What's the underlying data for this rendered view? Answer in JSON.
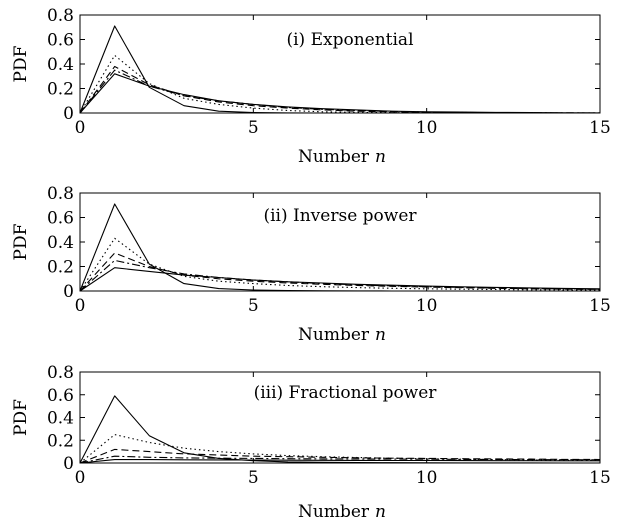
{
  "chart_data": [
    {
      "type": "line",
      "title": "(i) Exponential",
      "xlabel": "Number",
      "xlabel_var": "n",
      "ylabel": "PDF",
      "xlim": [
        0,
        15
      ],
      "ylim": [
        0,
        0.8
      ],
      "xticks": [
        0,
        5,
        10,
        15
      ],
      "yticks": [
        0,
        0.2,
        0.4,
        0.6,
        0.8
      ],
      "x": [
        0,
        1,
        2,
        3,
        4,
        5,
        6,
        7,
        8,
        9,
        10,
        11,
        12,
        13,
        14,
        15
      ],
      "series": [
        {
          "style": "solid",
          "values": [
            0,
            0.71,
            0.21,
            0.06,
            0.015,
            0.004,
            0.001,
            0,
            0,
            0,
            0,
            0,
            0,
            0,
            0,
            0
          ]
        },
        {
          "style": "dotted",
          "values": [
            0,
            0.47,
            0.24,
            0.12,
            0.07,
            0.04,
            0.02,
            0.01,
            0.005,
            0.003,
            0.002,
            0.001,
            0,
            0,
            0,
            0
          ]
        },
        {
          "style": "dashed",
          "values": [
            0,
            0.38,
            0.23,
            0.14,
            0.09,
            0.06,
            0.04,
            0.025,
            0.015,
            0.01,
            0.006,
            0.004,
            0.002,
            0.001,
            0.001,
            0
          ]
        },
        {
          "style": "dashdot",
          "values": [
            0,
            0.35,
            0.22,
            0.14,
            0.1,
            0.07,
            0.045,
            0.03,
            0.02,
            0.012,
            0.008,
            0.005,
            0.003,
            0.002,
            0.001,
            0.001
          ]
        },
        {
          "style": "solid",
          "values": [
            0,
            0.32,
            0.22,
            0.15,
            0.1,
            0.07,
            0.05,
            0.035,
            0.025,
            0.015,
            0.01,
            0.007,
            0.005,
            0.003,
            0.002,
            0.001
          ]
        }
      ]
    },
    {
      "type": "line",
      "title": "(ii) Inverse power",
      "xlabel": "Number",
      "xlabel_var": "n",
      "ylabel": "PDF",
      "xlim": [
        0,
        15
      ],
      "ylim": [
        0,
        0.8
      ],
      "xticks": [
        0,
        5,
        10,
        15
      ],
      "yticks": [
        0,
        0.2,
        0.4,
        0.6,
        0.8
      ],
      "x": [
        0,
        1,
        2,
        3,
        4,
        5,
        6,
        7,
        8,
        9,
        10,
        11,
        12,
        13,
        14,
        15
      ],
      "series": [
        {
          "style": "solid",
          "values": [
            0,
            0.71,
            0.22,
            0.06,
            0.02,
            0.008,
            0.004,
            0.002,
            0.001,
            0,
            0,
            0,
            0,
            0,
            0,
            0
          ]
        },
        {
          "style": "dotted",
          "values": [
            0,
            0.43,
            0.22,
            0.12,
            0.08,
            0.06,
            0.045,
            0.035,
            0.028,
            0.022,
            0.018,
            0.015,
            0.012,
            0.01,
            0.009,
            0.008
          ]
        },
        {
          "style": "dashed",
          "values": [
            0,
            0.31,
            0.2,
            0.13,
            0.1,
            0.08,
            0.065,
            0.055,
            0.045,
            0.038,
            0.032,
            0.027,
            0.022,
            0.018,
            0.015,
            0.013
          ]
        },
        {
          "style": "dashdot",
          "values": [
            0,
            0.25,
            0.19,
            0.14,
            0.11,
            0.09,
            0.075,
            0.06,
            0.05,
            0.042,
            0.035,
            0.029,
            0.024,
            0.02,
            0.017,
            0.015
          ]
        },
        {
          "style": "solid",
          "values": [
            0,
            0.19,
            0.16,
            0.13,
            0.11,
            0.09,
            0.075,
            0.065,
            0.055,
            0.047,
            0.04,
            0.034,
            0.029,
            0.025,
            0.021,
            0.018
          ]
        }
      ]
    },
    {
      "type": "line",
      "title": "(iii) Fractional power",
      "xlabel": "Number",
      "xlabel_var": "n",
      "ylabel": "PDF",
      "xlim": [
        0,
        15
      ],
      "ylim": [
        0,
        0.8
      ],
      "xticks": [
        0,
        5,
        10,
        15
      ],
      "yticks": [
        0,
        0.2,
        0.4,
        0.6,
        0.8
      ],
      "x": [
        0,
        1,
        2,
        3,
        4,
        5,
        6,
        7,
        8,
        9,
        10,
        11,
        12,
        13,
        14,
        15
      ],
      "series": [
        {
          "style": "solid",
          "values": [
            0,
            0.59,
            0.24,
            0.09,
            0.04,
            0.02,
            0.01,
            0.006,
            0.004,
            0.003,
            0.002,
            0.001,
            0.001,
            0.001,
            0,
            0
          ]
        },
        {
          "style": "dotted",
          "values": [
            0,
            0.25,
            0.18,
            0.13,
            0.1,
            0.08,
            0.065,
            0.055,
            0.048,
            0.042,
            0.037,
            0.033,
            0.03,
            0.027,
            0.025,
            0.023
          ]
        },
        {
          "style": "dashed",
          "values": [
            0,
            0.12,
            0.1,
            0.08,
            0.07,
            0.06,
            0.055,
            0.05,
            0.046,
            0.042,
            0.04,
            0.038,
            0.036,
            0.034,
            0.032,
            0.031
          ]
        },
        {
          "style": "dashdot",
          "values": [
            0,
            0.06,
            0.05,
            0.045,
            0.042,
            0.04,
            0.038,
            0.036,
            0.035,
            0.034,
            0.033,
            0.032,
            0.031,
            0.03,
            0.029,
            0.028
          ]
        },
        {
          "style": "solid",
          "values": [
            0,
            0.03,
            0.03,
            0.028,
            0.027,
            0.026,
            0.025,
            0.024,
            0.023,
            0.022,
            0.022,
            0.021,
            0.02,
            0.02,
            0.019,
            0.019
          ]
        }
      ]
    }
  ]
}
